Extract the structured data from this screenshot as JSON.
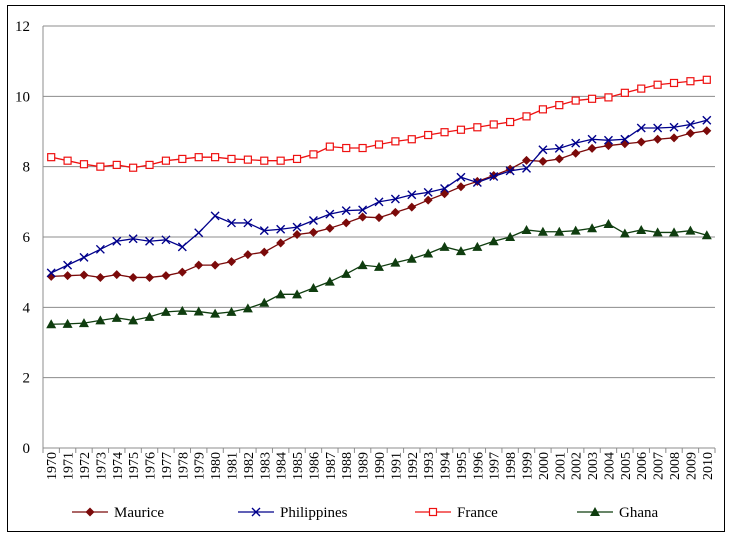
{
  "chart_data": {
    "type": "line",
    "title": "",
    "xlabel": "",
    "ylabel": "",
    "ylim": [
      0,
      12
    ],
    "yticks": [
      0,
      2,
      4,
      6,
      8,
      10,
      12
    ],
    "grid": "horizontal",
    "legend_position": "bottom",
    "categories": [
      "1970",
      "1971",
      "1972",
      "1973",
      "1974",
      "1975",
      "1976",
      "1977",
      "1978",
      "1979",
      "1980",
      "1981",
      "1982",
      "1983",
      "1984",
      "1985",
      "1986",
      "1987",
      "1988",
      "1989",
      "1990",
      "1991",
      "1992",
      "1993",
      "1994",
      "1995",
      "1996",
      "1997",
      "1998",
      "1999",
      "2000",
      "2001",
      "2002",
      "2003",
      "2004",
      "2005",
      "2006",
      "2007",
      "2008",
      "2009",
      "2010"
    ],
    "series": [
      {
        "name": "Maurice",
        "color": "#7b0a0a",
        "marker": "diamond",
        "values": [
          4.88,
          4.9,
          4.92,
          4.85,
          4.93,
          4.85,
          4.85,
          4.9,
          5.0,
          5.2,
          5.2,
          5.3,
          5.5,
          5.57,
          5.83,
          6.07,
          6.13,
          6.25,
          6.4,
          6.57,
          6.55,
          6.7,
          6.85,
          7.05,
          7.23,
          7.43,
          7.58,
          7.75,
          7.93,
          8.18,
          8.15,
          8.22,
          8.38,
          8.52,
          8.6,
          8.65,
          8.7,
          8.78,
          8.82,
          8.95,
          9.02
        ]
      },
      {
        "name": "Philippines",
        "color": "#00008b",
        "marker": "x",
        "values": [
          4.98,
          5.2,
          5.42,
          5.65,
          5.88,
          5.95,
          5.88,
          5.92,
          5.72,
          6.12,
          6.6,
          6.4,
          6.4,
          6.18,
          6.22,
          6.28,
          6.47,
          6.65,
          6.75,
          6.77,
          7.0,
          7.08,
          7.2,
          7.27,
          7.38,
          7.7,
          7.55,
          7.72,
          7.88,
          7.95,
          8.48,
          8.52,
          8.67,
          8.78,
          8.75,
          8.78,
          9.1,
          9.1,
          9.12,
          9.2,
          9.32
        ]
      },
      {
        "name": "France",
        "color": "#ee1111",
        "marker": "square-open",
        "values": [
          8.27,
          8.17,
          8.07,
          8.0,
          8.05,
          7.97,
          8.05,
          8.17,
          8.22,
          8.27,
          8.27,
          8.22,
          8.2,
          8.17,
          8.17,
          8.22,
          8.35,
          8.57,
          8.53,
          8.53,
          8.63,
          8.72,
          8.78,
          8.9,
          8.98,
          9.05,
          9.12,
          9.2,
          9.27,
          9.43,
          9.63,
          9.75,
          9.88,
          9.93,
          9.97,
          10.1,
          10.22,
          10.33,
          10.38,
          10.43,
          10.47
        ]
      },
      {
        "name": "Ghana",
        "color": "#0f3d0f",
        "marker": "triangle",
        "values": [
          3.52,
          3.53,
          3.55,
          3.63,
          3.7,
          3.63,
          3.73,
          3.87,
          3.9,
          3.88,
          3.82,
          3.87,
          3.97,
          4.13,
          4.37,
          4.37,
          4.55,
          4.73,
          4.95,
          5.2,
          5.15,
          5.27,
          5.38,
          5.53,
          5.72,
          5.6,
          5.72,
          5.88,
          6.0,
          6.2,
          6.15,
          6.15,
          6.18,
          6.25,
          6.37,
          6.1,
          6.2,
          6.13,
          6.13,
          6.18,
          6.05
        ]
      }
    ]
  }
}
